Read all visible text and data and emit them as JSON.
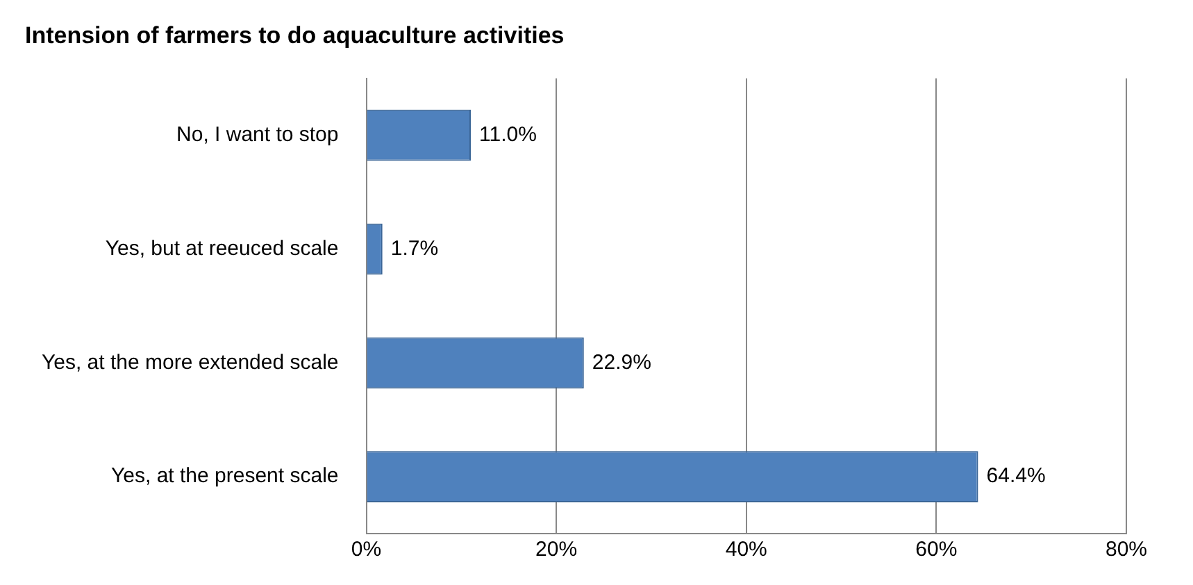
{
  "chart_data": {
    "type": "bar",
    "orientation": "horizontal",
    "title": "Intension of farmers to do aquaculture activities",
    "categories": [
      "No, I want to stop",
      "Yes, but at reeuced scale",
      "Yes, at the more extended scale",
      "Yes, at the present scale"
    ],
    "values": [
      11.0,
      1.7,
      22.9,
      64.4
    ],
    "value_labels": [
      "11.0%",
      "1.7%",
      "22.9%",
      "64.4%"
    ],
    "color": "#4f81bd",
    "xlim": [
      0,
      80
    ],
    "xticks": [
      {
        "value": 0,
        "label": "0%"
      },
      {
        "value": 20,
        "label": "20%"
      },
      {
        "value": 40,
        "label": "40%"
      },
      {
        "value": 60,
        "label": "60%"
      },
      {
        "value": 80,
        "label": "80%"
      }
    ],
    "grid": "x",
    "legend": false
  }
}
